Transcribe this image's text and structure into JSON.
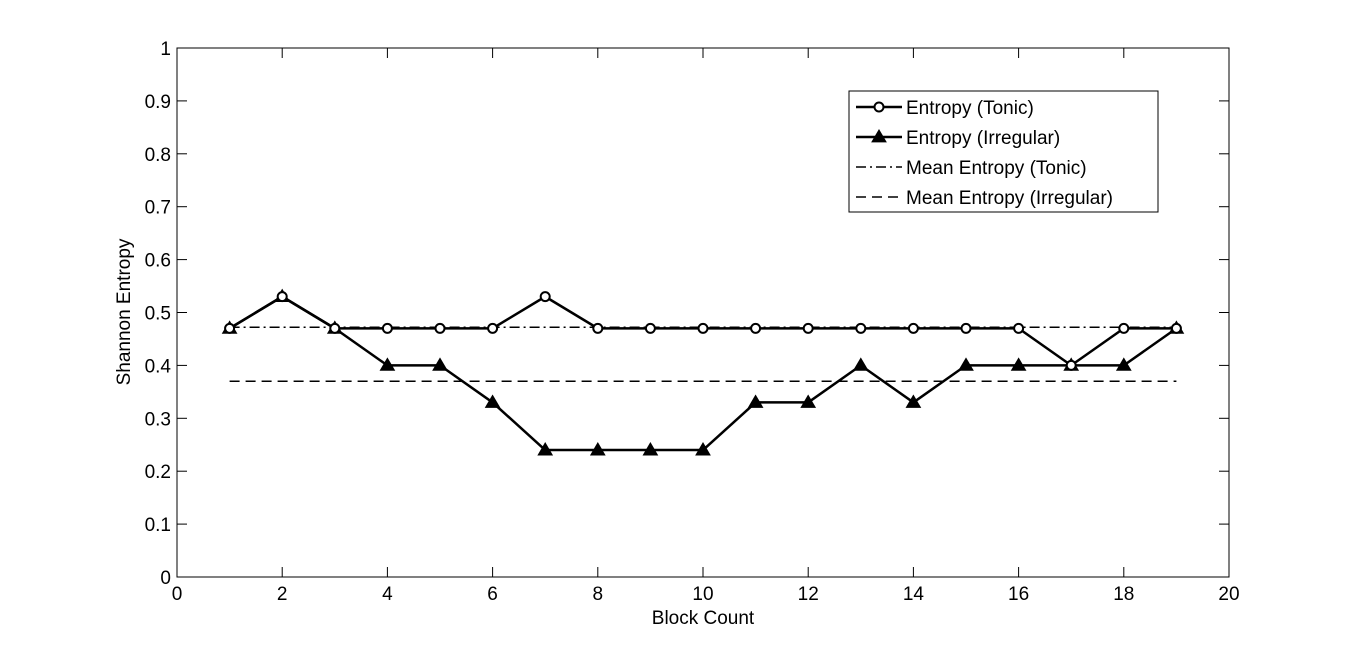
{
  "chart_data": {
    "type": "line",
    "title": "",
    "xlabel": "Block Count",
    "ylabel": "Shannon Entropy",
    "xlim": [
      0,
      20
    ],
    "ylim": [
      0,
      1
    ],
    "xticks": [
      0,
      2,
      4,
      6,
      8,
      10,
      12,
      14,
      16,
      18,
      20
    ],
    "yticks": [
      0,
      0.1,
      0.2,
      0.3,
      0.4,
      0.5,
      0.6,
      0.7,
      0.8,
      0.9,
      1
    ],
    "xtick_labels": [
      "0",
      "2",
      "4",
      "6",
      "8",
      "10",
      "12",
      "14",
      "16",
      "18",
      "20"
    ],
    "ytick_labels": [
      "0",
      "0.1",
      "0.2",
      "0.3",
      "0.4",
      "0.5",
      "0.6",
      "0.7",
      "0.8",
      "0.9",
      "1"
    ],
    "grid": false,
    "legend_position": "top-right",
    "x": [
      1,
      2,
      3,
      4,
      5,
      6,
      7,
      8,
      9,
      10,
      11,
      12,
      13,
      14,
      15,
      16,
      17,
      18,
      19
    ],
    "series": [
      {
        "name": "Entropy (Tonic)",
        "style": "solid-circle",
        "values": [
          0.47,
          0.53,
          0.47,
          0.47,
          0.47,
          0.47,
          0.53,
          0.47,
          0.47,
          0.47,
          0.47,
          0.47,
          0.47,
          0.47,
          0.47,
          0.47,
          0.4,
          0.47,
          0.47
        ]
      },
      {
        "name": "Entropy (Irregular)",
        "style": "solid-triangle",
        "values": [
          0.47,
          0.53,
          0.47,
          0.4,
          0.4,
          0.33,
          0.24,
          0.24,
          0.24,
          0.24,
          0.33,
          0.33,
          0.4,
          0.33,
          0.4,
          0.4,
          0.4,
          0.4,
          0.47
        ]
      },
      {
        "name": "Mean Entropy (Tonic)",
        "style": "dash-dot",
        "values": [
          0.472,
          0.472,
          0.472,
          0.472,
          0.472,
          0.472,
          0.472,
          0.472,
          0.472,
          0.472,
          0.472,
          0.472,
          0.472,
          0.472,
          0.472,
          0.472,
          0.472,
          0.472,
          0.472
        ]
      },
      {
        "name": "Mean Entropy (Irregular)",
        "style": "dashed",
        "values": [
          0.37,
          0.37,
          0.37,
          0.37,
          0.37,
          0.37,
          0.37,
          0.37,
          0.37,
          0.37,
          0.37,
          0.37,
          0.37,
          0.37,
          0.37,
          0.37,
          0.37,
          0.37,
          0.37
        ]
      }
    ]
  }
}
